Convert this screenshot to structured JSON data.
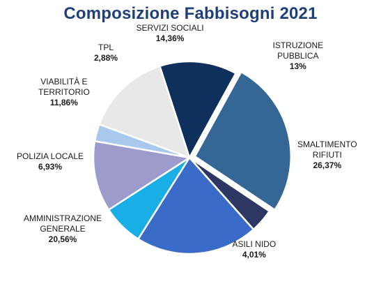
{
  "chart_data": {
    "type": "pie",
    "title": "Composizione Fabbisogni 2021",
    "slices": [
      {
        "name_lines": [
          "ISTRUZIONE",
          "PUBBLICA"
        ],
        "value": 13,
        "label": "13%",
        "color": "#0f2f5c"
      },
      {
        "name_lines": [
          "SMALTIMENTO",
          "RIFIUTI"
        ],
        "value": 26.37,
        "label": "26,37%",
        "color": "#356796"
      },
      {
        "name_lines": [
          "ASILI NIDO"
        ],
        "value": 4.01,
        "label": "4,01%",
        "color": "#2e3664"
      },
      {
        "name_lines": [
          "AMMINISTRAZIONE",
          "GENERALE"
        ],
        "value": 20.56,
        "label": "20,56%",
        "color": "#3a6bc8"
      },
      {
        "name_lines": [
          "POLIZIA LOCALE"
        ],
        "value": 6.93,
        "label": "6,93%",
        "color": "#1aaee6"
      },
      {
        "name_lines": [
          "VIABILITÀ E",
          "TERRITORIO"
        ],
        "value": 11.86,
        "label": "11,86%",
        "color": "#9d9bcc"
      },
      {
        "name_lines": [
          "TPL"
        ],
        "value": 2.88,
        "label": "2,88%",
        "color": "#a8c8ee"
      },
      {
        "name_lines": [
          "SERVIZI SOCIALI"
        ],
        "value": 14.36,
        "label": "14,36%",
        "color": "#e8e8e8"
      }
    ]
  }
}
